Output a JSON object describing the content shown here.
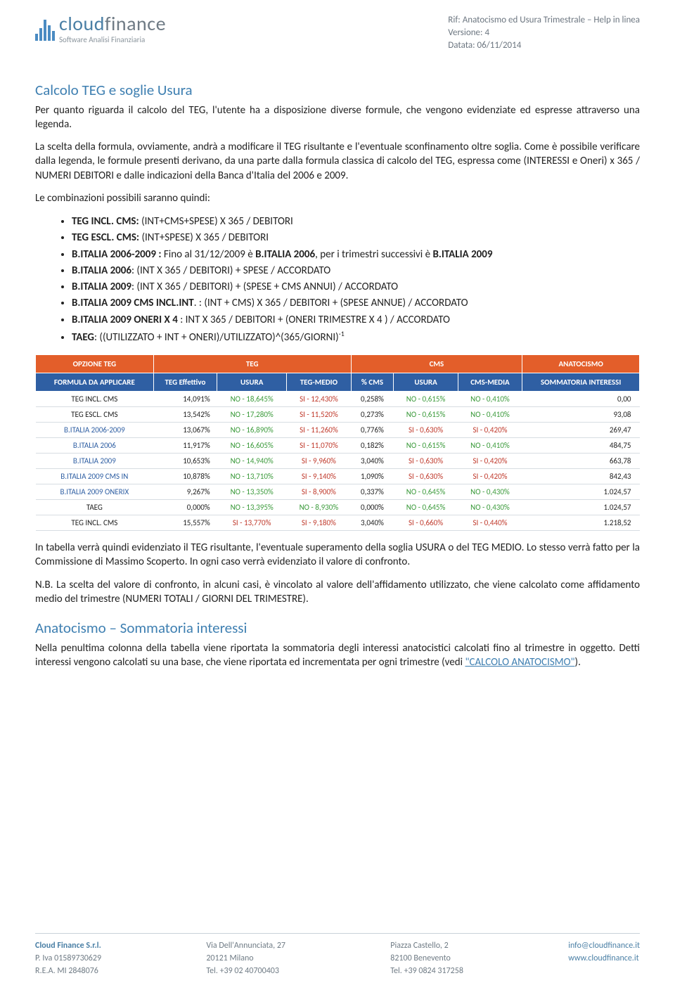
{
  "logo": {
    "brand_bold": "cloud",
    "brand_rest": "finance",
    "subtitle": "Software Analisi Finanziaria"
  },
  "meta": {
    "line1": "Rif: Anatocismo ed Usura Trimestrale – Help in linea",
    "line2": "Versione: 4",
    "line3": "Datata: 06/11/2014"
  },
  "h1": "Calcolo TEG e soglie Usura",
  "p1": "Per quanto riguarda il calcolo del TEG, l'utente ha a disposizione diverse formule, che vengono evidenziate ed espresse attraverso una legenda.",
  "p2": "La scelta della formula, ovviamente, andrà a modificare il TEG risultante e l'eventuale sconfinamento oltre soglia. Come è possibile verificare dalla legenda, le formule presenti derivano, da una parte dalla formula classica di calcolo del TEG, espressa come (INTERESSI e Oneri) x 365 / NUMERI DEBITORI e dalle indicazioni della Banca d'Italia del 2006 e 2009.",
  "p3": "Le combinazioni possibili saranno quindi:",
  "bullets": [
    {
      "b": "TEG INCL. CMS: ",
      "t": "(INT+CMS+SPESE) X 365 / DEBITORI"
    },
    {
      "b": "TEG ESCL. CMS: ",
      "t": "(INT+SPESE) X 365 / DEBITORI"
    },
    {
      "b": "B.ITALIA 2006-2009 : ",
      "t_pre": "Fino al 31/12/2009 è ",
      "b2": "B.ITALIA 2006",
      "t_mid": ", per i trimestri successivi è ",
      "b3": "B.ITALIA 2009"
    },
    {
      "b": "B.ITALIA 2006",
      "t": ": (INT X 365 / DEBITORI) + SPESE / ACCORDATO"
    },
    {
      "b": "B.ITALIA 2009",
      "t": ": (INT X 365 / DEBITORI) + (SPESE + CMS ANNUI) / ACCORDATO"
    },
    {
      "b": "B.ITALIA 2009 CMS INCL.INT",
      "t": ". : (INT + CMS) X 365 / DEBITORI + (SPESE ANNUE) / ACCORDATO"
    },
    {
      "b": "B.ITALIA 2009 ONERI X 4 ",
      "t": ": INT X 365 / DEBITORI + (ONERI TRIMESTRE X 4 ) / ACCORDATO"
    },
    {
      "b": "TAEG",
      "t": ": ((UTILIZZATO + INT + ONERI)/UTILIZZATO)^(365/GIORNI)",
      "sup": "-1"
    }
  ],
  "table": {
    "head1": [
      "OPZIONE TEG",
      "TEG",
      "CMS",
      "ANATOCISMO"
    ],
    "head1_span": [
      1,
      3,
      3,
      1
    ],
    "head2": [
      "FORMULA DA APPLICARE",
      "TEG Effettivo",
      "USURA",
      "TEG-MEDIO",
      "% CMS",
      "USURA",
      "CMS-MEDIA",
      "SOMMATORIA INTERESSI"
    ],
    "rows": [
      [
        "TEG INCL. CMS",
        "14,091%",
        "NO - 18,645%",
        "SI - 12,430%",
        "0,258%",
        "NO - 0,615%",
        "NO - 0,410%",
        "0,00"
      ],
      [
        "TEG ESCL. CMS",
        "13,542%",
        "NO - 17,280%",
        "SI - 11,520%",
        "0,273%",
        "NO - 0,615%",
        "NO - 0,410%",
        "93,08"
      ],
      [
        "B.ITALIA 2006-2009",
        "13,067%",
        "NO - 16,890%",
        "SI - 11,260%",
        "0,776%",
        "SI - 0,630%",
        "SI - 0,420%",
        "269,47"
      ],
      [
        "B.ITALIA 2006",
        "11,917%",
        "NO - 16,605%",
        "SI - 11,070%",
        "0,182%",
        "NO - 0,615%",
        "NO - 0,410%",
        "484,75"
      ],
      [
        "B.ITALIA 2009",
        "10,653%",
        "NO - 14,940%",
        "SI - 9,960%",
        "3,040%",
        "SI - 0,630%",
        "SI - 0,420%",
        "663,78"
      ],
      [
        "B.ITALIA 2009 CMS IN",
        "10,878%",
        "NO - 13,710%",
        "SI - 9,140%",
        "1,090%",
        "SI - 0,630%",
        "SI - 0,420%",
        "842,43"
      ],
      [
        "B.ITALIA 2009 ONERIX",
        "9,267%",
        "NO - 13,350%",
        "SI - 8,900%",
        "0,337%",
        "NO - 0,645%",
        "NO - 0,430%",
        "1.024,57"
      ],
      [
        "TAEG",
        "0,000%",
        "NO - 13,395%",
        "NO - 8,930%",
        "0,000%",
        "NO - 0,645%",
        "NO - 0,430%",
        "1.024,57"
      ],
      [
        "TEG INCL. CMS",
        "15,557%",
        "SI - 13,770%",
        "SI - 9,180%",
        "3,040%",
        "SI - 0,660%",
        "SI - 0,440%",
        "1.218,52"
      ]
    ],
    "row_label_color": [
      "",
      "",
      "blue",
      "blue",
      "blue",
      "blue",
      "blue",
      "",
      ""
    ],
    "colors": {
      "header_orange": "#e35e2a",
      "header_blue": "#2f5fa3",
      "green": "#3a9a3a",
      "red": "#c0392b"
    }
  },
  "p4": "In tabella verrà quindi evidenziato il TEG risultante, l'eventuale superamento della soglia USURA o del TEG MEDIO. Lo stesso verrà fatto per la Commissione di Massimo Scoperto. In ogni caso verrà evidenziato il valore di confronto.",
  "p5": "N.B. La scelta del valore di confronto, in alcuni casi, è vincolato al valore dell'affidamento utilizzato, che viene calcolato come affidamento medio del trimestre (NUMERI TOTALI / GIORNI DEL TRIMESTRE).",
  "h2": "Anatocismo – Sommatoria interessi",
  "p6_a": "Nella penultima colonna della tabella viene riportata la sommatoria degli interessi anatocistici calcolati fino al trimestre in oggetto. Detti interessi vengono calcolati su una base, che viene riportata ed incrementata per ogni trimestre (vedi ",
  "p6_link": "\"CALCOLO ANATOCISMO\"",
  "p6_b": ").",
  "footer": {
    "c1": [
      "Cloud Finance S.r.l.",
      "P. Iva 01589730629",
      "R.E.A. MI 2848076"
    ],
    "c2": [
      "Via Dell'Annunciata, 27",
      "20121 Milano",
      "Tel. +39 02 40700403"
    ],
    "c3": [
      "Piazza Castello, 2",
      "82100 Benevento",
      "Tel. +39 0824 317258"
    ],
    "c4": [
      "info@cloudfinance.it",
      "www.cloudfinance.it"
    ]
  }
}
